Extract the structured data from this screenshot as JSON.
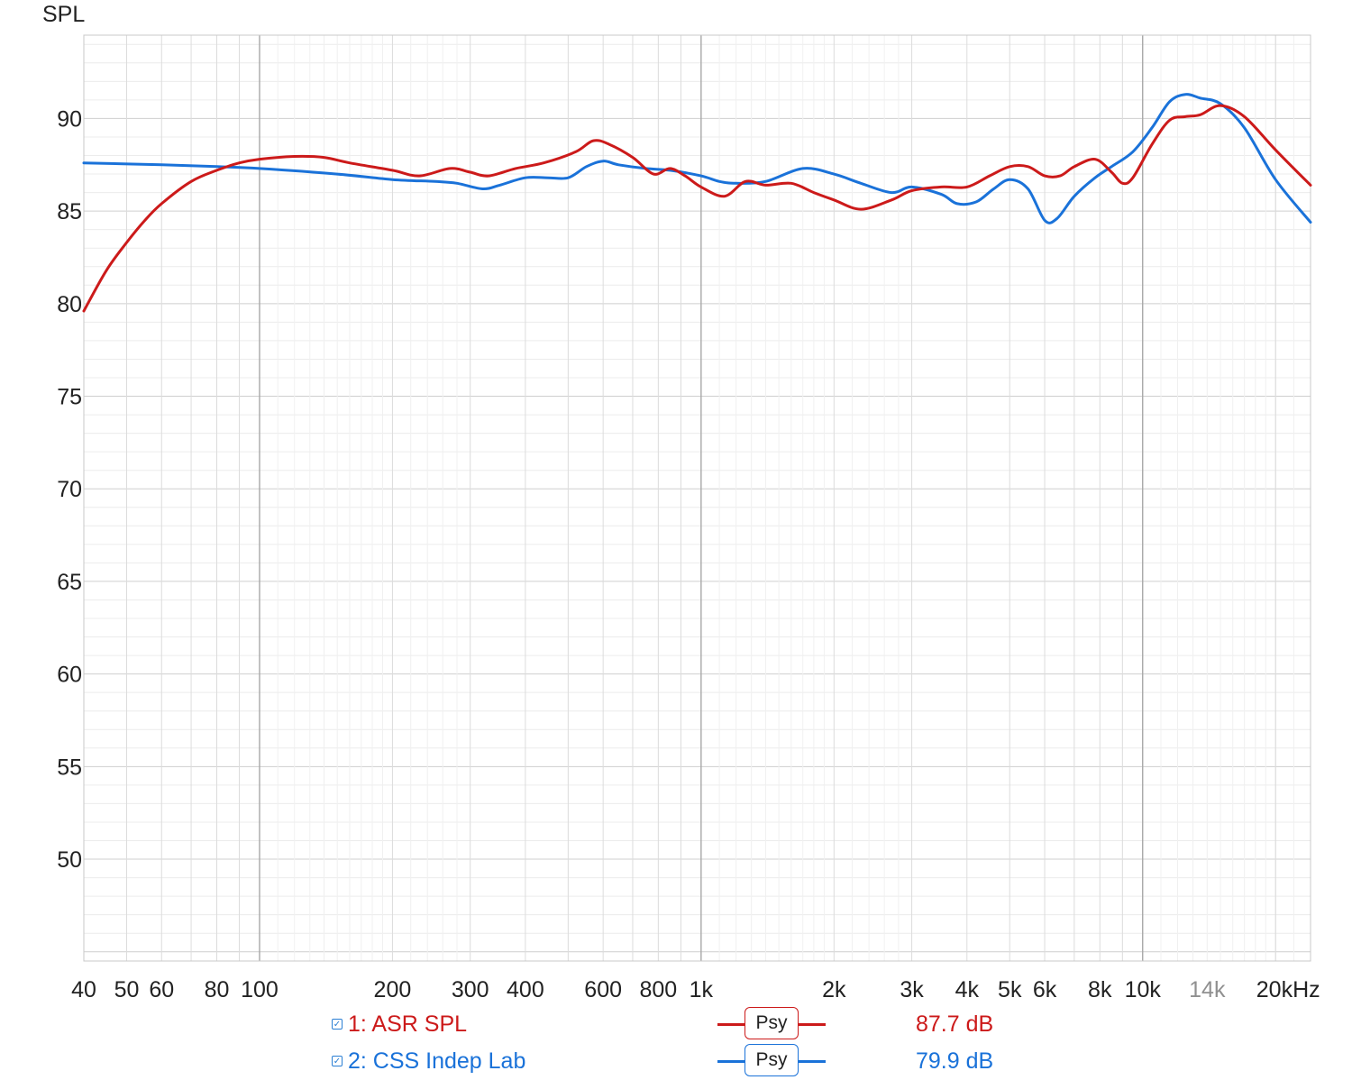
{
  "chart_data": {
    "type": "line",
    "ylabel": "SPL",
    "x_unit": "Hz",
    "x_scale": "log",
    "xlim": [
      40,
      24000
    ],
    "ylim": [
      44.5,
      94.5
    ],
    "y_ticks": [
      50,
      55,
      60,
      65,
      70,
      75,
      80,
      85,
      90
    ],
    "x_ticks": [
      {
        "value": 40,
        "label": "40"
      },
      {
        "value": 50,
        "label": "50"
      },
      {
        "value": 60,
        "label": "60"
      },
      {
        "value": 80,
        "label": "80"
      },
      {
        "value": 100,
        "label": "100"
      },
      {
        "value": 200,
        "label": "200"
      },
      {
        "value": 300,
        "label": "300"
      },
      {
        "value": 400,
        "label": "400"
      },
      {
        "value": 600,
        "label": "600"
      },
      {
        "value": 800,
        "label": "800"
      },
      {
        "value": 1000,
        "label": "1k"
      },
      {
        "value": 2000,
        "label": "2k"
      },
      {
        "value": 3000,
        "label": "3k"
      },
      {
        "value": 4000,
        "label": "4k"
      },
      {
        "value": 5000,
        "label": "5k"
      },
      {
        "value": 6000,
        "label": "6k"
      },
      {
        "value": 8000,
        "label": "8k"
      },
      {
        "value": 10000,
        "label": "10k"
      },
      {
        "value": 14000,
        "label": "14k",
        "muted": true
      },
      {
        "value": 20000,
        "label": "20kHz"
      }
    ],
    "grid": true,
    "series": [
      {
        "name": "1: ASR SPL",
        "color": "#cc1a1a",
        "legend_value": "87.7 dB",
        "legend_button": "Psy",
        "points": [
          [
            40,
            79.6
          ],
          [
            45,
            81.8
          ],
          [
            50,
            83.3
          ],
          [
            55,
            84.5
          ],
          [
            60,
            85.4
          ],
          [
            70,
            86.6
          ],
          [
            80,
            87.2
          ],
          [
            90,
            87.6
          ],
          [
            100,
            87.8
          ],
          [
            120,
            87.95
          ],
          [
            140,
            87.9
          ],
          [
            160,
            87.6
          ],
          [
            200,
            87.2
          ],
          [
            230,
            86.9
          ],
          [
            270,
            87.3
          ],
          [
            300,
            87.1
          ],
          [
            330,
            86.9
          ],
          [
            380,
            87.3
          ],
          [
            440,
            87.6
          ],
          [
            520,
            88.2
          ],
          [
            570,
            88.8
          ],
          [
            620,
            88.6
          ],
          [
            700,
            87.9
          ],
          [
            780,
            87.0
          ],
          [
            850,
            87.3
          ],
          [
            920,
            86.9
          ],
          [
            1000,
            86.3
          ],
          [
            1130,
            85.8
          ],
          [
            1260,
            86.6
          ],
          [
            1400,
            86.4
          ],
          [
            1600,
            86.5
          ],
          [
            1800,
            86.0
          ],
          [
            2000,
            85.6
          ],
          [
            2300,
            85.1
          ],
          [
            2700,
            85.6
          ],
          [
            3000,
            86.1
          ],
          [
            3500,
            86.3
          ],
          [
            4000,
            86.3
          ],
          [
            4500,
            86.9
          ],
          [
            5000,
            87.4
          ],
          [
            5500,
            87.4
          ],
          [
            6000,
            86.9
          ],
          [
            6500,
            86.9
          ],
          [
            7000,
            87.4
          ],
          [
            7800,
            87.8
          ],
          [
            8500,
            87.1
          ],
          [
            9000,
            86.5
          ],
          [
            9500,
            86.8
          ],
          [
            10500,
            88.6
          ],
          [
            11500,
            89.9
          ],
          [
            12500,
            90.1
          ],
          [
            13500,
            90.2
          ],
          [
            15000,
            90.7
          ],
          [
            17000,
            90.1
          ],
          [
            20000,
            88.3
          ],
          [
            24000,
            86.4
          ]
        ]
      },
      {
        "name": "2: CSS Indep Lab",
        "color": "#1a72d9",
        "legend_value": "79.9 dB",
        "legend_button": "Psy",
        "points": [
          [
            40,
            87.6
          ],
          [
            60,
            87.5
          ],
          [
            80,
            87.4
          ],
          [
            100,
            87.3
          ],
          [
            150,
            87.0
          ],
          [
            200,
            86.7
          ],
          [
            250,
            86.6
          ],
          [
            280,
            86.5
          ],
          [
            320,
            86.2
          ],
          [
            350,
            86.4
          ],
          [
            400,
            86.8
          ],
          [
            450,
            86.8
          ],
          [
            500,
            86.8
          ],
          [
            550,
            87.4
          ],
          [
            600,
            87.7
          ],
          [
            650,
            87.5
          ],
          [
            750,
            87.3
          ],
          [
            850,
            87.2
          ],
          [
            1000,
            86.9
          ],
          [
            1100,
            86.6
          ],
          [
            1200,
            86.5
          ],
          [
            1400,
            86.6
          ],
          [
            1700,
            87.3
          ],
          [
            2000,
            87.0
          ],
          [
            2300,
            86.5
          ],
          [
            2700,
            86.0
          ],
          [
            3000,
            86.3
          ],
          [
            3500,
            85.9
          ],
          [
            3800,
            85.4
          ],
          [
            4200,
            85.5
          ],
          [
            4600,
            86.2
          ],
          [
            5000,
            86.7
          ],
          [
            5500,
            86.2
          ],
          [
            6000,
            84.5
          ],
          [
            6400,
            84.6
          ],
          [
            7000,
            85.8
          ],
          [
            7800,
            86.8
          ],
          [
            8500,
            87.4
          ],
          [
            9500,
            88.2
          ],
          [
            10500,
            89.5
          ],
          [
            11500,
            90.9
          ],
          [
            12500,
            91.3
          ],
          [
            13500,
            91.1
          ],
          [
            15000,
            90.8
          ],
          [
            17000,
            89.5
          ],
          [
            20000,
            86.7
          ],
          [
            24000,
            84.4
          ]
        ]
      }
    ]
  }
}
